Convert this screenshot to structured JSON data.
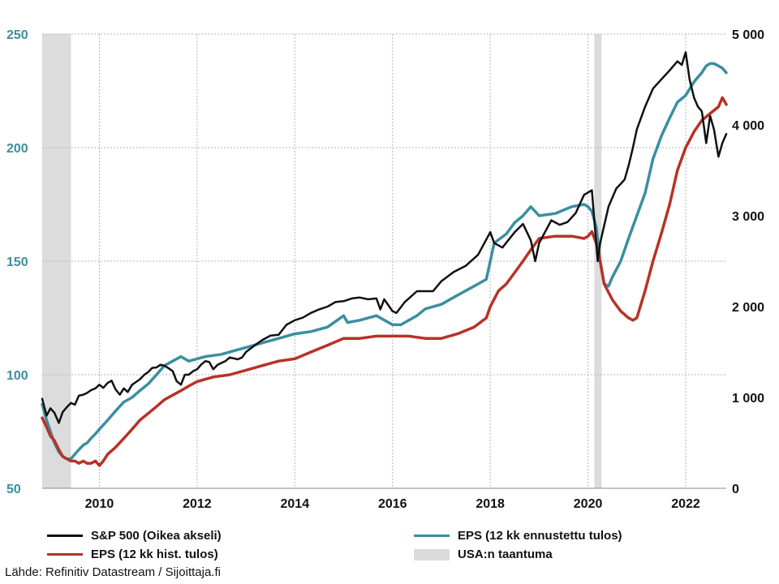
{
  "chart_data": {
    "type": "line",
    "x_ticks": [
      "2010",
      "2012",
      "2014",
      "2016",
      "2018",
      "2020",
      "2022"
    ],
    "xlim": [
      2008.83,
      2022.83
    ],
    "left_axis": {
      "ticks": [
        "50",
        "100",
        "150",
        "200",
        "250"
      ],
      "ylim": [
        50,
        250
      ],
      "color": "#3a8fa0"
    },
    "right_axis": {
      "ticks": [
        "0",
        "1 000",
        "2 000",
        "3 000",
        "4 000",
        "5 000"
      ],
      "ylim": [
        0,
        5000
      ],
      "color": "#111111"
    },
    "grid": true,
    "recessions": [
      [
        2008.83,
        2009.42
      ],
      [
        2020.13,
        2020.28
      ]
    ],
    "recession_color": "#dcdcdc",
    "series": [
      {
        "name": "S&P 500 (Oikea akseli)",
        "axis": "right",
        "color": "#111111",
        "x": [
          2008.83,
          2008.92,
          2009.0,
          2009.08,
          2009.17,
          2009.25,
          2009.33,
          2009.42,
          2009.5,
          2009.58,
          2009.67,
          2009.75,
          2009.83,
          2009.92,
          2010.0,
          2010.08,
          2010.17,
          2010.25,
          2010.33,
          2010.42,
          2010.5,
          2010.58,
          2010.67,
          2010.75,
          2010.83,
          2010.92,
          2011.0,
          2011.08,
          2011.17,
          2011.25,
          2011.33,
          2011.42,
          2011.5,
          2011.58,
          2011.67,
          2011.75,
          2011.83,
          2011.92,
          2012.0,
          2012.08,
          2012.17,
          2012.25,
          2012.33,
          2012.42,
          2012.5,
          2012.58,
          2012.67,
          2012.75,
          2012.83,
          2012.92,
          2013.0,
          2013.17,
          2013.33,
          2013.5,
          2013.67,
          2013.83,
          2014.0,
          2014.17,
          2014.33,
          2014.5,
          2014.67,
          2014.83,
          2015.0,
          2015.17,
          2015.33,
          2015.5,
          2015.67,
          2015.75,
          2015.83,
          2016.0,
          2016.08,
          2016.25,
          2016.5,
          2016.67,
          2016.83,
          2017.0,
          2017.25,
          2017.5,
          2017.75,
          2018.0,
          2018.08,
          2018.25,
          2018.5,
          2018.67,
          2018.83,
          2018.92,
          2019.0,
          2019.25,
          2019.42,
          2019.58,
          2019.75,
          2019.92,
          2020.08,
          2020.13,
          2020.2,
          2020.25,
          2020.42,
          2020.58,
          2020.67,
          2020.75,
          2020.83,
          2020.92,
          2021.0,
          2021.17,
          2021.33,
          2021.5,
          2021.67,
          2021.83,
          2021.92,
          2022.0,
          2022.08,
          2022.17,
          2022.25,
          2022.33,
          2022.42,
          2022.5,
          2022.58,
          2022.67,
          2022.75,
          2022.83
        ],
        "y": [
          985,
          800,
          880,
          830,
          720,
          840,
          890,
          940,
          920,
          1020,
          1030,
          1050,
          1080,
          1100,
          1140,
          1105,
          1160,
          1185,
          1090,
          1030,
          1100,
          1060,
          1140,
          1170,
          1200,
          1250,
          1280,
          1325,
          1330,
          1360,
          1350,
          1320,
          1290,
          1180,
          1140,
          1250,
          1250,
          1290,
          1310,
          1360,
          1400,
          1390,
          1310,
          1360,
          1380,
          1400,
          1440,
          1430,
          1420,
          1440,
          1500,
          1570,
          1630,
          1680,
          1690,
          1800,
          1850,
          1880,
          1930,
          1970,
          2000,
          2050,
          2060,
          2090,
          2100,
          2080,
          2090,
          1970,
          2080,
          1950,
          1930,
          2050,
          2170,
          2170,
          2170,
          2280,
          2380,
          2450,
          2570,
          2820,
          2700,
          2650,
          2820,
          2910,
          2730,
          2500,
          2700,
          2950,
          2900,
          2930,
          3030,
          3230,
          3280,
          2950,
          2500,
          2700,
          3100,
          3300,
          3350,
          3400,
          3550,
          3750,
          3950,
          4200,
          4400,
          4500,
          4600,
          4700,
          4660,
          4800,
          4500,
          4300,
          4200,
          4150,
          3800,
          4100,
          3950,
          3650,
          3800,
          3900
        ]
      },
      {
        "name": "EPS (12 kk ennustettu tulos)",
        "axis": "left",
        "color": "#3a8fa0",
        "x": [
          2008.83,
          2008.92,
          2009.0,
          2009.08,
          2009.17,
          2009.25,
          2009.33,
          2009.42,
          2009.5,
          2009.58,
          2009.67,
          2009.75,
          2009.83,
          2009.92,
          2010.0,
          2010.17,
          2010.33,
          2010.5,
          2010.67,
          2010.83,
          2011.0,
          2011.17,
          2011.33,
          2011.5,
          2011.67,
          2011.83,
          2012.0,
          2012.17,
          2012.5,
          2012.83,
          2013.0,
          2013.33,
          2013.67,
          2014.0,
          2014.33,
          2014.67,
          2015.0,
          2015.08,
          2015.33,
          2015.67,
          2016.0,
          2016.17,
          2016.5,
          2016.67,
          2017.0,
          2017.33,
          2017.67,
          2017.92,
          2018.0,
          2018.08,
          2018.33,
          2018.5,
          2018.67,
          2018.83,
          2019.0,
          2019.33,
          2019.67,
          2019.92,
          2020.0,
          2020.08,
          2020.17,
          2020.25,
          2020.33,
          2020.42,
          2020.5,
          2020.67,
          2020.83,
          2021.0,
          2021.17,
          2021.33,
          2021.5,
          2021.67,
          2021.83,
          2022.0,
          2022.17,
          2022.33,
          2022.42,
          2022.5,
          2022.58,
          2022.67,
          2022.75,
          2022.83
        ],
        "y": [
          87,
          80,
          75,
          70,
          66,
          64,
          63,
          63,
          65,
          67,
          69,
          70,
          72,
          74,
          76,
          80,
          84,
          88,
          90,
          93,
          96,
          100,
          104,
          106,
          108,
          106,
          107,
          108,
          109,
          111,
          112,
          114,
          116,
          118,
          119,
          121,
          126,
          123,
          124,
          126,
          122,
          122,
          126,
          129,
          131,
          135,
          139,
          142,
          150,
          158,
          162,
          167,
          170,
          174,
          170,
          171,
          174,
          175,
          174,
          172,
          165,
          150,
          140,
          139,
          143,
          150,
          160,
          170,
          180,
          195,
          205,
          213,
          220,
          223,
          229,
          233,
          236,
          237,
          237,
          236,
          235,
          233
        ]
      },
      {
        "name": "EPS (12 kk hist. tulos)",
        "axis": "left",
        "color": "#b73226",
        "x": [
          2008.83,
          2008.92,
          2009.0,
          2009.08,
          2009.17,
          2009.25,
          2009.33,
          2009.42,
          2009.5,
          2009.58,
          2009.67,
          2009.75,
          2009.83,
          2009.92,
          2010.0,
          2010.08,
          2010.17,
          2010.33,
          2010.5,
          2010.67,
          2010.83,
          2011.0,
          2011.17,
          2011.33,
          2011.5,
          2011.67,
          2011.83,
          2012.0,
          2012.33,
          2012.67,
          2013.0,
          2013.33,
          2013.67,
          2014.0,
          2014.33,
          2014.67,
          2015.0,
          2015.33,
          2015.67,
          2016.0,
          2016.33,
          2016.67,
          2017.0,
          2017.33,
          2017.67,
          2017.92,
          2018.0,
          2018.17,
          2018.33,
          2018.5,
          2018.67,
          2018.83,
          2019.0,
          2019.33,
          2019.67,
          2019.92,
          2020.0,
          2020.08,
          2020.17,
          2020.25,
          2020.33,
          2020.5,
          2020.67,
          2020.83,
          2020.92,
          2021.0,
          2021.17,
          2021.33,
          2021.5,
          2021.67,
          2021.83,
          2022.0,
          2022.17,
          2022.33,
          2022.5,
          2022.67,
          2022.75,
          2022.83
        ],
        "y": [
          81,
          77,
          73,
          71,
          67,
          64,
          63,
          62,
          62,
          61,
          62,
          61,
          61,
          62,
          60,
          62,
          65,
          68,
          72,
          76,
          80,
          83,
          86,
          89,
          91,
          93,
          95,
          97,
          99,
          100,
          102,
          104,
          106,
          107,
          110,
          113,
          116,
          116,
          117,
          117,
          117,
          116,
          116,
          118,
          121,
          125,
          130,
          137,
          140,
          145,
          150,
          155,
          160,
          161,
          161,
          160,
          161,
          163,
          158,
          150,
          140,
          133,
          128,
          125,
          124,
          125,
          137,
          150,
          162,
          175,
          190,
          200,
          207,
          212,
          215,
          218,
          222,
          219
        ]
      }
    ]
  },
  "legend": {
    "sp500": "S&P 500 (Oikea akseli)",
    "eps_forecast": "EPS (12 kk ennustettu tulos)",
    "eps_hist": "EPS (12 kk hist. tulos)",
    "recession": "USA:n taantuma"
  },
  "source": "Lähde: Refinitiv Datastream / Sijoittaja.fi"
}
